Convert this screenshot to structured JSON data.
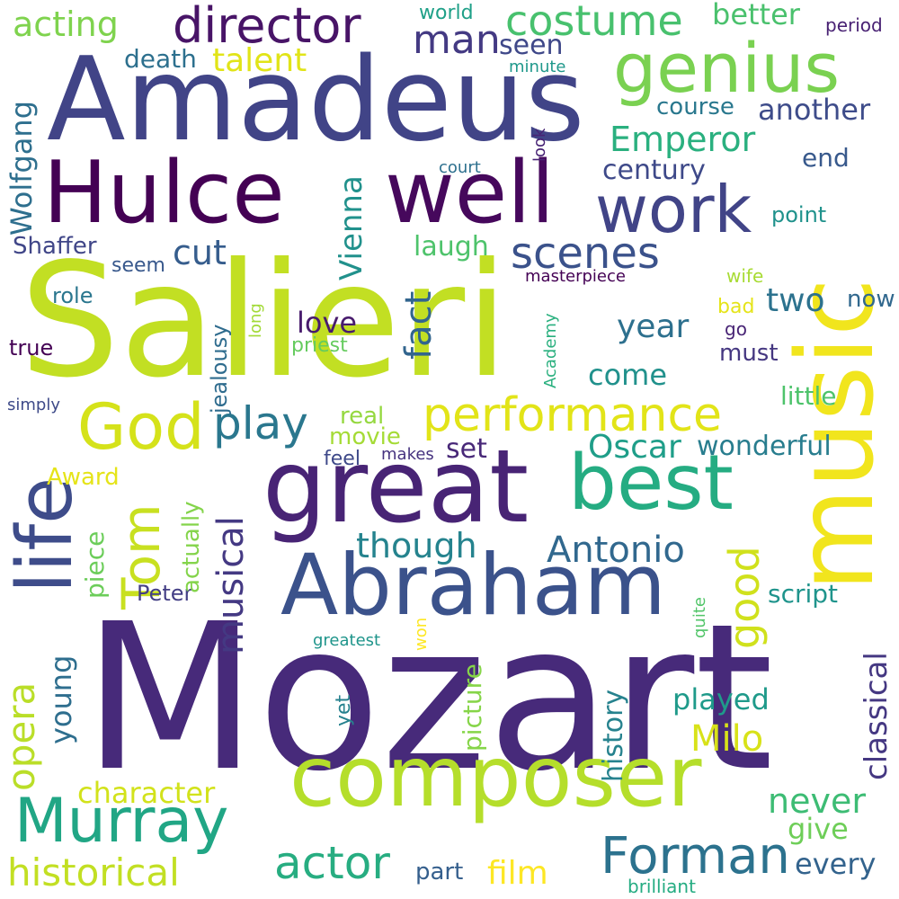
{
  "words": [
    {
      "text": "Mozart",
      "color": "#472a7a"
    },
    {
      "text": "Salieri",
      "color": "#c2df23"
    },
    {
      "text": "Amadeus",
      "color": "#414487"
    },
    {
      "text": "music",
      "color": "#f1e51d"
    },
    {
      "text": "Abraham",
      "color": "#3b528b"
    },
    {
      "text": "composer",
      "color": "#b5de2b"
    },
    {
      "text": "great",
      "color": "#482475"
    },
    {
      "text": "Hulce",
      "color": "#440154"
    },
    {
      "text": "well",
      "color": "#46085c"
    },
    {
      "text": "life",
      "color": "#3e4c8a"
    },
    {
      "text": "genius",
      "color": "#7ad151"
    },
    {
      "text": "best",
      "color": "#25ac82"
    },
    {
      "text": "work",
      "color": "#414487"
    },
    {
      "text": "Murray",
      "color": "#21a685"
    },
    {
      "text": "Tom",
      "color": "#c8e020"
    },
    {
      "text": "God",
      "color": "#d5e21a"
    },
    {
      "text": "director",
      "color": "#481467"
    },
    {
      "text": "performance",
      "color": "#e2e418"
    },
    {
      "text": "Forman",
      "color": "#2c728e"
    },
    {
      "text": "costume",
      "color": "#48c16e"
    },
    {
      "text": "actor",
      "color": "#27ad81"
    },
    {
      "text": "historical",
      "color": "#c2df23"
    },
    {
      "text": "scenes",
      "color": "#3b528b"
    },
    {
      "text": "man",
      "color": "#443a83"
    },
    {
      "text": "play",
      "color": "#2a778e"
    },
    {
      "text": "good",
      "color": "#d0e11c"
    },
    {
      "text": "Antonio",
      "color": "#31688e"
    },
    {
      "text": "classical",
      "color": "#453882"
    },
    {
      "text": "opera",
      "color": "#bade28"
    },
    {
      "text": "musical",
      "color": "#443983"
    },
    {
      "text": "Emperor",
      "color": "#2ab07f"
    },
    {
      "text": "Oscar",
      "color": "#1f9e89"
    },
    {
      "text": "character",
      "color": "#d2e21b"
    },
    {
      "text": "never",
      "color": "#3dbc74"
    },
    {
      "text": "acting",
      "color": "#7fd34e"
    },
    {
      "text": "though",
      "color": "#25838e"
    },
    {
      "text": "Milo",
      "color": "#d8e219"
    },
    {
      "text": "fact",
      "color": "#32658e"
    },
    {
      "text": "Wolfgang",
      "color": "#2e6f8e"
    },
    {
      "text": "talent",
      "color": "#e1e418"
    },
    {
      "text": "film",
      "color": "#fde725"
    },
    {
      "text": "better",
      "color": "#4ac16d"
    },
    {
      "text": "another",
      "color": "#3e4c8a"
    },
    {
      "text": "history",
      "color": "#26828e"
    },
    {
      "text": "two",
      "color": "#2c728e"
    },
    {
      "text": "love",
      "color": "#481b6d"
    },
    {
      "text": "year",
      "color": "#2d708e"
    },
    {
      "text": "every",
      "color": "#33638d"
    },
    {
      "text": "cut",
      "color": "#365d8d"
    },
    {
      "text": "Vienna",
      "color": "#21918c"
    },
    {
      "text": "young",
      "color": "#2e6e8e"
    },
    {
      "text": "played",
      "color": "#1f9a8a"
    },
    {
      "text": "come",
      "color": "#21918c"
    },
    {
      "text": "wonderful",
      "color": "#287d8e"
    },
    {
      "text": "script",
      "color": "#1f948c"
    },
    {
      "text": "give",
      "color": "#6ece58"
    },
    {
      "text": "piece",
      "color": "#6ccd5a"
    },
    {
      "text": "picture",
      "color": "#86d549"
    },
    {
      "text": "laugh",
      "color": "#4ec36b"
    },
    {
      "text": "end",
      "color": "#38598c"
    },
    {
      "text": "century",
      "color": "#3e4989"
    },
    {
      "text": "death",
      "color": "#2d708e"
    },
    {
      "text": "seen",
      "color": "#3f4889"
    },
    {
      "text": "set",
      "color": "#482878"
    },
    {
      "text": "little",
      "color": "#4ec36b"
    },
    {
      "text": "jealousy",
      "color": "#2f6c8e"
    },
    {
      "text": "Shaffer",
      "color": "#404688"
    },
    {
      "text": "part",
      "color": "#355f8d"
    },
    {
      "text": "movie",
      "color": "#a5db36"
    },
    {
      "text": "real",
      "color": "#95d840"
    },
    {
      "text": "course",
      "color": "#2a788e"
    },
    {
      "text": "point",
      "color": "#20928c"
    },
    {
      "text": "Peter",
      "color": "#433e85"
    },
    {
      "text": "must",
      "color": "#453781"
    },
    {
      "text": "Award",
      "color": "#e5e419"
    },
    {
      "text": "actually",
      "color": "#84d44b"
    },
    {
      "text": "now",
      "color": "#31688e"
    },
    {
      "text": "world",
      "color": "#1fa088"
    },
    {
      "text": "true",
      "color": "#440154"
    },
    {
      "text": "role",
      "color": "#2a768e"
    },
    {
      "text": "seem",
      "color": "#38588c"
    },
    {
      "text": "priest",
      "color": "#65cb5e"
    },
    {
      "text": "yet",
      "color": "#26818e"
    },
    {
      "text": "feel",
      "color": "#3e4989"
    },
    {
      "text": "makes",
      "color": "#46337f"
    },
    {
      "text": "wife",
      "color": "#a8db34"
    },
    {
      "text": "bad",
      "color": "#e5e419"
    },
    {
      "text": "greatest",
      "color": "#1f958b"
    },
    {
      "text": "won",
      "color": "#fde725"
    },
    {
      "text": "brilliant",
      "color": "#25ac82"
    },
    {
      "text": "period",
      "color": "#482173"
    },
    {
      "text": "minute",
      "color": "#1f988b"
    },
    {
      "text": "court",
      "color": "#2d708e"
    },
    {
      "text": "look",
      "color": "#482475"
    },
    {
      "text": "masterpiece",
      "color": "#440154"
    },
    {
      "text": "long",
      "color": "#a2da37"
    },
    {
      "text": "go",
      "color": "#482475"
    },
    {
      "text": "simply",
      "color": "#3e4a89"
    },
    {
      "text": "Academy",
      "color": "#2ab07f"
    },
    {
      "text": "quite",
      "color": "#52c569"
    }
  ]
}
